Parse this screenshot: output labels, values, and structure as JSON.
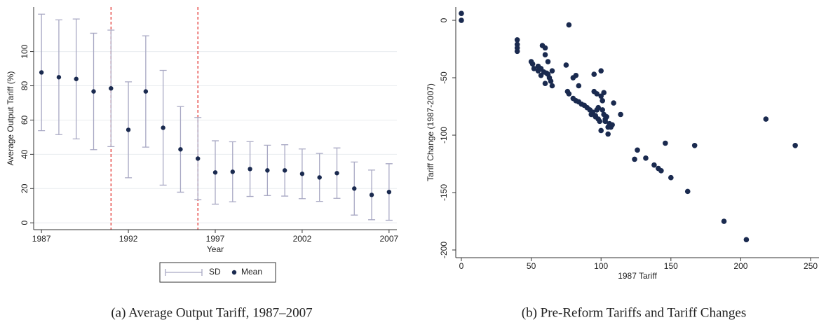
{
  "chart_data": [
    {
      "type": "errorbar",
      "caption": "(a) Average Output Tariff, 1987–2007",
      "x_label": "Year",
      "y_label": "Average Output Tariff (%)",
      "x": [
        1987,
        1988,
        1989,
        1990,
        1991,
        1992,
        1993,
        1994,
        1995,
        1996,
        1997,
        1998,
        1999,
        2000,
        2001,
        2002,
        2003,
        2004,
        2005,
        2006,
        2007
      ],
      "series": [
        {
          "name": "SD",
          "color": "#a9a9c4",
          "values": [
            34,
            33.5,
            35,
            34,
            34,
            28,
            32.5,
            33.5,
            25,
            24,
            18.5,
            17.5,
            16,
            14.7,
            15,
            14.5,
            14,
            14.7,
            15.5,
            14.5,
            16.5
          ]
        },
        {
          "name": "Mean",
          "color": "#1a2a4f",
          "values": [
            87.8,
            85,
            84,
            76.7,
            78.5,
            54.3,
            76.7,
            55.5,
            42.9,
            37.5,
            29.4,
            29.8,
            31.4,
            30.6,
            30.6,
            28.6,
            26.5,
            29,
            20,
            16.3,
            18
          ]
        }
      ],
      "xlim": [
        1986.55,
        2007.45
      ],
      "xticks": [
        1987,
        1992,
        1997,
        2002,
        2007
      ],
      "ylim": [
        -4,
        126
      ],
      "yticks": [
        0,
        20,
        40,
        60,
        80,
        100
      ],
      "grid": true,
      "vlines": [
        1991,
        1996
      ],
      "vline_color": "#e0201c",
      "legend": "bottom"
    },
    {
      "type": "scatter",
      "caption": "(b) Pre-Reform Tariffs and Tariff Changes",
      "x_label": "1987 Tariff",
      "y_label": "Tariff Change (1987-2007)",
      "color": "#1a2a4f",
      "x": [
        0,
        0,
        40,
        40,
        40,
        40,
        50,
        51,
        52,
        55,
        57,
        58,
        60,
        60,
        61,
        60,
        62,
        62,
        63,
        65,
        64,
        65,
        57,
        59,
        55,
        75,
        76,
        77,
        77,
        80,
        82,
        84,
        80,
        82,
        84,
        86,
        88,
        90,
        92,
        94,
        95,
        95,
        96,
        97,
        98,
        99,
        100,
        100,
        101,
        101,
        102,
        103,
        100,
        102,
        104,
        105,
        105,
        106,
        107,
        108,
        109,
        114,
        97,
        98,
        103,
        93,
        96,
        124,
        126,
        132,
        138,
        141,
        143,
        146,
        150,
        162,
        167,
        188,
        204,
        218,
        239
      ],
      "values": [
        6,
        0,
        -17,
        -21,
        -24,
        -27,
        -36,
        -38,
        -42,
        -44,
        -48,
        -22,
        -24,
        -30,
        -46,
        -55,
        -36,
        -47,
        -50,
        -44,
        -53,
        -57,
        -42,
        -45,
        -40,
        -39,
        -62,
        -64,
        -4,
        -50,
        -48,
        -57,
        -68,
        -70,
        -71,
        -73,
        -74,
        -76,
        -78,
        -80,
        -47,
        -62,
        -84,
        -78,
        -86,
        -88,
        -44,
        -66,
        -70,
        -78,
        -82,
        -86,
        -96,
        -63,
        -84,
        -93,
        -99,
        -90,
        -93,
        -91,
        -72,
        -82,
        -64,
        -76,
        -88,
        -82,
        -83,
        -121,
        -113,
        -120,
        -126,
        -129,
        -131,
        -107,
        -137,
        -149,
        -109,
        -175,
        -191,
        -86,
        -109
      ],
      "xlim": [
        -4,
        256
      ],
      "xticks": [
        0,
        50,
        100,
        150,
        200,
        250
      ],
      "ylim": [
        -206.7,
        11.6
      ],
      "yticks": [
        0,
        -50,
        -100,
        -150,
        -200
      ],
      "grid": false
    }
  ]
}
